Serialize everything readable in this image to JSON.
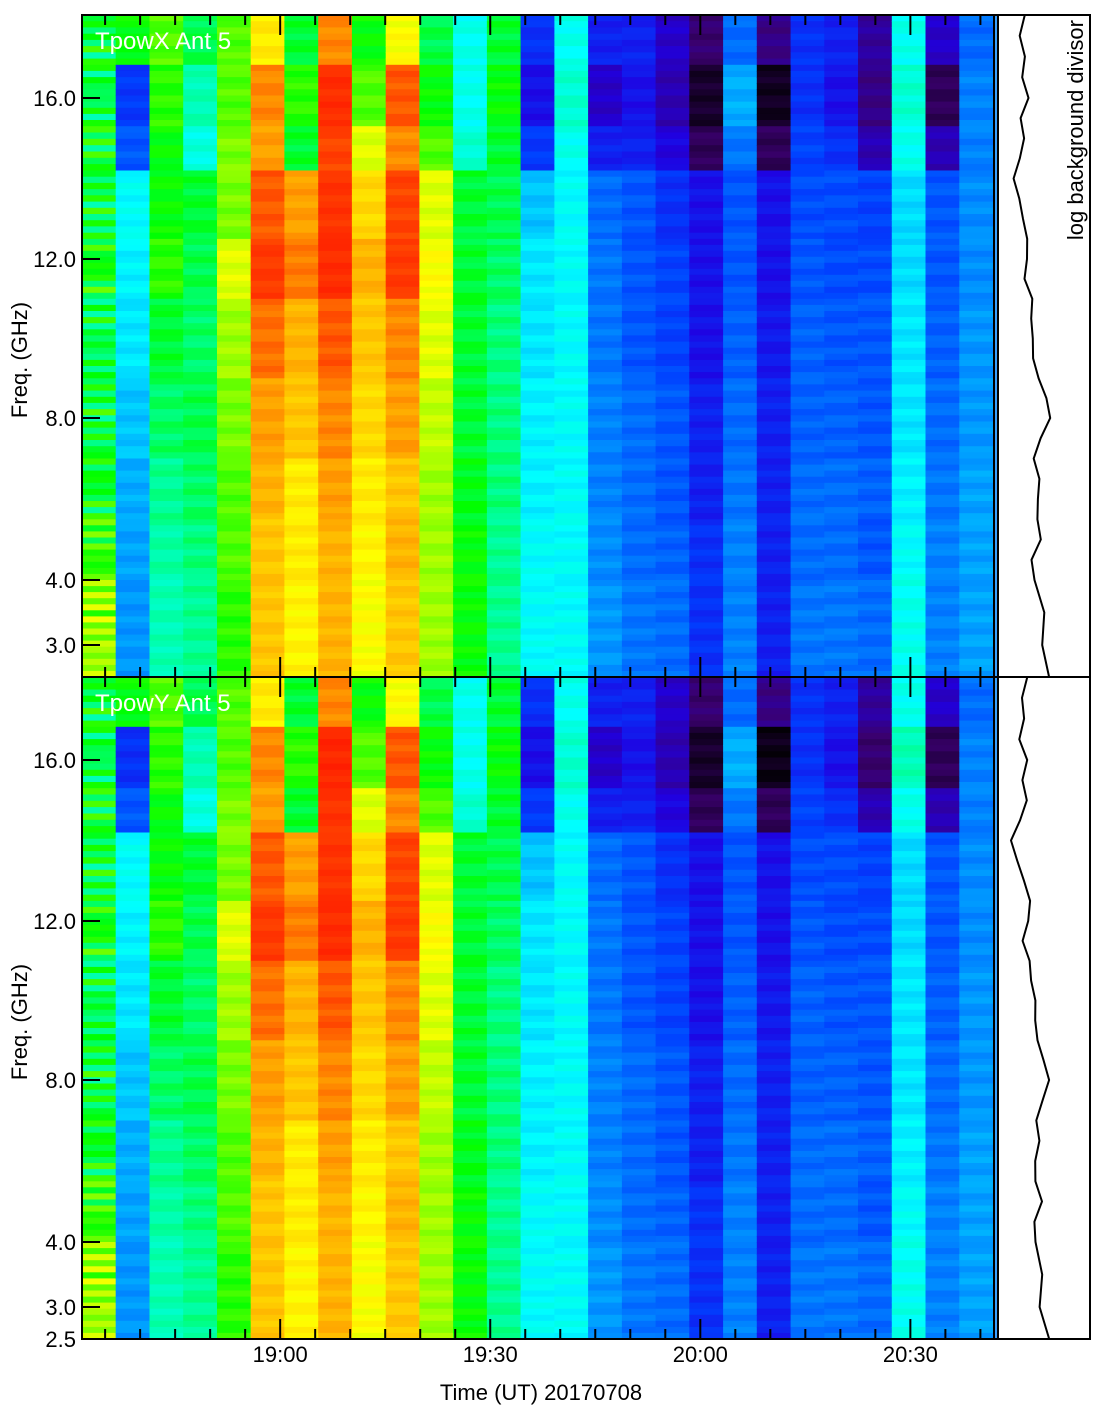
{
  "chart_data": {
    "type": "heatmap",
    "xlabel": "Time (UT) 20170708",
    "ylabel": "Freq. (GHz)",
    "side_panel_label": "log background divisor",
    "x_range_minutes_utc": [
      1111.7,
      1241.8
    ],
    "x_ticks": [
      {
        "minutes": 1140,
        "label": "19:00"
      },
      {
        "minutes": 1170,
        "label": "19:30"
      },
      {
        "minutes": 1200,
        "label": "20:00"
      },
      {
        "minutes": 1230,
        "label": "20:30"
      }
    ],
    "x_minor_tick_step_minutes": 5,
    "y_ticks": [
      {
        "value": 2.5,
        "label": "2.5"
      },
      {
        "value": 3.0,
        "label": "3.0"
      },
      {
        "value": 4.0,
        "label": "4.0"
      },
      {
        "value": 8.0,
        "label": "8.0"
      },
      {
        "value": 12.0,
        "label": "12.0"
      },
      {
        "value": 16.0,
        "label": "16.0"
      }
    ],
    "ylim": [
      2.5,
      18.0
    ],
    "colormap": "rainbow (black-purple-blue-cyan-green-yellow-red)",
    "value_scale": "relative 0-1",
    "freq_band_edges_ghz": [
      18,
      16.8,
      15.3,
      14.2,
      12.5,
      11,
      9,
      7,
      5.5,
      4,
      2.5
    ],
    "panels": [
      {
        "title": "TpowX Ant 5",
        "columns": [
          [
            0.56,
            0.55,
            0.57,
            0.56,
            0.58,
            0.55,
            0.56,
            0.57,
            0.6,
            0.66
          ],
          [
            0.58,
            0.27,
            0.3,
            0.45,
            0.44,
            0.43,
            0.4,
            0.38,
            0.37,
            0.36
          ],
          [
            0.62,
            0.6,
            0.58,
            0.58,
            0.6,
            0.56,
            0.54,
            0.52,
            0.51,
            0.5
          ],
          [
            0.55,
            0.5,
            0.47,
            0.56,
            0.55,
            0.54,
            0.55,
            0.54,
            0.53,
            0.52
          ],
          [
            0.62,
            0.62,
            0.64,
            0.64,
            0.7,
            0.66,
            0.64,
            0.62,
            0.62,
            0.6
          ],
          [
            0.74,
            0.84,
            0.82,
            0.88,
            0.91,
            0.86,
            0.82,
            0.8,
            0.78,
            0.78
          ],
          [
            0.56,
            0.6,
            0.56,
            0.82,
            0.85,
            0.8,
            0.78,
            0.74,
            0.74,
            0.73
          ],
          [
            0.84,
            0.93,
            0.9,
            0.92,
            0.93,
            0.88,
            0.84,
            0.82,
            0.8,
            0.8
          ],
          [
            0.58,
            0.62,
            0.7,
            0.76,
            0.8,
            0.78,
            0.76,
            0.74,
            0.73,
            0.72
          ],
          [
            0.72,
            0.88,
            0.84,
            0.9,
            0.91,
            0.84,
            0.82,
            0.78,
            0.8,
            0.78
          ],
          [
            0.55,
            0.58,
            0.62,
            0.7,
            0.72,
            0.7,
            0.68,
            0.66,
            0.66,
            0.66
          ],
          [
            0.46,
            0.46,
            0.48,
            0.56,
            0.56,
            0.56,
            0.56,
            0.57,
            0.58,
            0.58
          ],
          [
            0.56,
            0.58,
            0.56,
            0.55,
            0.54,
            0.53,
            0.53,
            0.53,
            0.52,
            0.52
          ],
          [
            0.26,
            0.22,
            0.27,
            0.4,
            0.43,
            0.43,
            0.44,
            0.44,
            0.45,
            0.45
          ],
          [
            0.46,
            0.48,
            0.46,
            0.45,
            0.45,
            0.45,
            0.45,
            0.45,
            0.45,
            0.45
          ],
          [
            0.24,
            0.18,
            0.24,
            0.32,
            0.33,
            0.33,
            0.34,
            0.34,
            0.35,
            0.36
          ],
          [
            0.24,
            0.22,
            0.24,
            0.3,
            0.3,
            0.3,
            0.32,
            0.32,
            0.32,
            0.33
          ],
          [
            0.18,
            0.16,
            0.2,
            0.26,
            0.28,
            0.28,
            0.3,
            0.3,
            0.31,
            0.32
          ],
          [
            0.1,
            0.04,
            0.08,
            0.22,
            0.22,
            0.22,
            0.24,
            0.24,
            0.26,
            0.26
          ],
          [
            0.32,
            0.38,
            0.33,
            0.3,
            0.3,
            0.31,
            0.32,
            0.33,
            0.34,
            0.34
          ],
          [
            0.12,
            0.03,
            0.08,
            0.22,
            0.22,
            0.23,
            0.24,
            0.24,
            0.24,
            0.24
          ],
          [
            0.26,
            0.26,
            0.28,
            0.29,
            0.3,
            0.31,
            0.31,
            0.32,
            0.32,
            0.33
          ],
          [
            0.24,
            0.22,
            0.26,
            0.29,
            0.29,
            0.3,
            0.31,
            0.32,
            0.32,
            0.33
          ],
          [
            0.14,
            0.12,
            0.16,
            0.28,
            0.29,
            0.3,
            0.3,
            0.31,
            0.3,
            0.32
          ],
          [
            0.46,
            0.48,
            0.46,
            0.42,
            0.42,
            0.43,
            0.43,
            0.44,
            0.45,
            0.46
          ],
          [
            0.18,
            0.08,
            0.16,
            0.3,
            0.3,
            0.31,
            0.32,
            0.33,
            0.34,
            0.34
          ],
          [
            0.32,
            0.34,
            0.34,
            0.35,
            0.35,
            0.36,
            0.36,
            0.37,
            0.37,
            0.37
          ]
        ]
      },
      {
        "title": "TpowY Ant 5",
        "columns": [
          [
            0.56,
            0.55,
            0.57,
            0.56,
            0.58,
            0.55,
            0.56,
            0.57,
            0.6,
            0.66
          ],
          [
            0.58,
            0.26,
            0.3,
            0.45,
            0.44,
            0.43,
            0.4,
            0.38,
            0.37,
            0.36
          ],
          [
            0.62,
            0.6,
            0.58,
            0.58,
            0.6,
            0.56,
            0.54,
            0.52,
            0.51,
            0.5
          ],
          [
            0.55,
            0.5,
            0.47,
            0.56,
            0.55,
            0.54,
            0.55,
            0.54,
            0.53,
            0.52
          ],
          [
            0.62,
            0.62,
            0.64,
            0.64,
            0.7,
            0.66,
            0.64,
            0.62,
            0.62,
            0.6
          ],
          [
            0.74,
            0.84,
            0.82,
            0.88,
            0.91,
            0.86,
            0.82,
            0.8,
            0.78,
            0.78
          ],
          [
            0.56,
            0.6,
            0.56,
            0.82,
            0.85,
            0.8,
            0.78,
            0.74,
            0.74,
            0.73
          ],
          [
            0.84,
            0.94,
            0.92,
            0.92,
            0.93,
            0.88,
            0.84,
            0.82,
            0.8,
            0.8
          ],
          [
            0.58,
            0.62,
            0.7,
            0.76,
            0.8,
            0.78,
            0.76,
            0.74,
            0.73,
            0.72
          ],
          [
            0.72,
            0.88,
            0.84,
            0.9,
            0.91,
            0.84,
            0.82,
            0.78,
            0.8,
            0.78
          ],
          [
            0.55,
            0.58,
            0.62,
            0.7,
            0.72,
            0.7,
            0.68,
            0.66,
            0.66,
            0.66
          ],
          [
            0.46,
            0.46,
            0.48,
            0.56,
            0.56,
            0.56,
            0.56,
            0.57,
            0.58,
            0.58
          ],
          [
            0.56,
            0.58,
            0.56,
            0.55,
            0.54,
            0.53,
            0.53,
            0.53,
            0.52,
            0.52
          ],
          [
            0.26,
            0.22,
            0.27,
            0.4,
            0.43,
            0.43,
            0.44,
            0.44,
            0.45,
            0.45
          ],
          [
            0.46,
            0.48,
            0.46,
            0.45,
            0.45,
            0.45,
            0.45,
            0.45,
            0.45,
            0.45
          ],
          [
            0.24,
            0.18,
            0.24,
            0.32,
            0.33,
            0.33,
            0.34,
            0.34,
            0.35,
            0.36
          ],
          [
            0.24,
            0.22,
            0.24,
            0.3,
            0.3,
            0.3,
            0.32,
            0.32,
            0.32,
            0.33
          ],
          [
            0.18,
            0.16,
            0.2,
            0.26,
            0.28,
            0.28,
            0.3,
            0.3,
            0.31,
            0.32
          ],
          [
            0.1,
            0.04,
            0.08,
            0.22,
            0.22,
            0.22,
            0.24,
            0.24,
            0.26,
            0.26
          ],
          [
            0.32,
            0.38,
            0.33,
            0.3,
            0.3,
            0.31,
            0.32,
            0.33,
            0.34,
            0.34
          ],
          [
            0.12,
            0.02,
            0.08,
            0.22,
            0.22,
            0.23,
            0.24,
            0.24,
            0.24,
            0.24
          ],
          [
            0.26,
            0.26,
            0.28,
            0.29,
            0.3,
            0.31,
            0.31,
            0.32,
            0.32,
            0.33
          ],
          [
            0.24,
            0.22,
            0.26,
            0.29,
            0.29,
            0.3,
            0.31,
            0.32,
            0.32,
            0.33
          ],
          [
            0.14,
            0.1,
            0.16,
            0.28,
            0.29,
            0.3,
            0.3,
            0.31,
            0.3,
            0.32
          ],
          [
            0.46,
            0.5,
            0.46,
            0.42,
            0.42,
            0.43,
            0.43,
            0.44,
            0.45,
            0.46
          ],
          [
            0.18,
            0.08,
            0.16,
            0.3,
            0.3,
            0.31,
            0.32,
            0.33,
            0.34,
            0.34
          ],
          [
            0.32,
            0.34,
            0.34,
            0.35,
            0.35,
            0.36,
            0.36,
            0.37,
            0.37,
            0.37
          ]
        ]
      }
    ],
    "background_divisor_profile": {
      "freq_ghz": [
        18,
        17.5,
        17,
        16.5,
        16,
        15.5,
        15,
        14.5,
        14,
        13.5,
        13,
        12.5,
        12,
        11.5,
        11,
        10.5,
        10,
        9.5,
        9,
        8.5,
        8,
        7.5,
        7,
        6.5,
        6,
        5.5,
        5,
        4.5,
        4,
        3.5,
        3,
        2.5
      ],
      "relative_level": [
        0.25,
        0.22,
        0.28,
        0.2,
        0.26,
        0.18,
        0.27,
        0.22,
        0.1,
        0.14,
        0.2,
        0.3,
        0.32,
        0.26,
        0.32,
        0.3,
        0.36,
        0.4,
        0.46,
        0.52,
        0.55,
        0.45,
        0.4,
        0.48,
        0.42,
        0.38,
        0.44,
        0.36,
        0.42,
        0.52,
        0.45,
        0.54
      ]
    }
  }
}
